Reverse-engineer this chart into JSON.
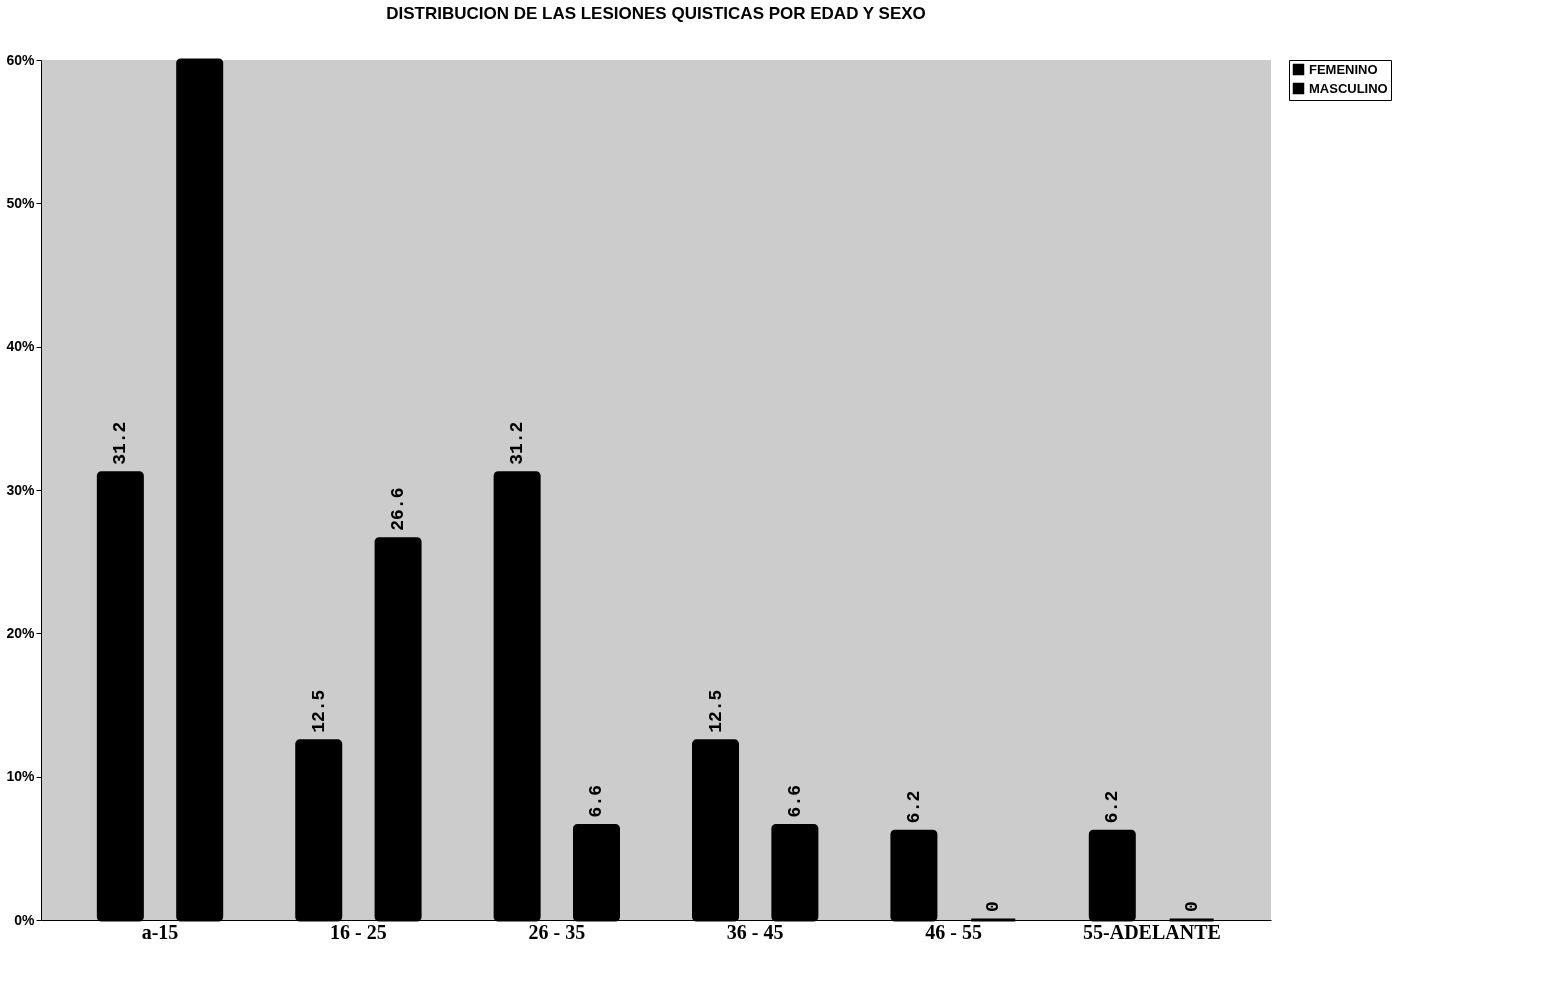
{
  "chart_data": {
    "type": "bar",
    "title": "DISTRIBUCION DE LAS LESIONES QUISTICAS POR EDAD Y SEXO",
    "categories": [
      "a-15",
      "16  -  25",
      "26  -  35",
      "36  -  45",
      "46  -  55",
      "55-ADELANTE"
    ],
    "series": [
      {
        "name": "FEMENINO",
        "color": "#000000",
        "values": [
          31.2,
          12.5,
          31.2,
          12.5,
          6.2,
          6.2
        ],
        "value_labels": [
          "31.2",
          "12.5",
          "31.2",
          "12.5",
          "6.2",
          "6.2"
        ]
      },
      {
        "name": "MASCULINO",
        "color": "#000000",
        "values": [
          60,
          26.6,
          6.6,
          6.6,
          0,
          0
        ],
        "value_labels": [
          null,
          "26.6",
          "6.6",
          "6.6",
          "0",
          "0"
        ]
      }
    ],
    "ylim": [
      0,
      60
    ],
    "yticks": [
      {
        "value": 0,
        "label": "0%"
      },
      {
        "value": 10,
        "label": "10%"
      },
      {
        "value": 20,
        "label": "20%"
      },
      {
        "value": 30,
        "label": "30%"
      },
      {
        "value": 40,
        "label": "40%"
      },
      {
        "value": 50,
        "label": "50%"
      },
      {
        "value": 60,
        "label": "60%"
      }
    ],
    "grid": false,
    "legend": "right"
  }
}
